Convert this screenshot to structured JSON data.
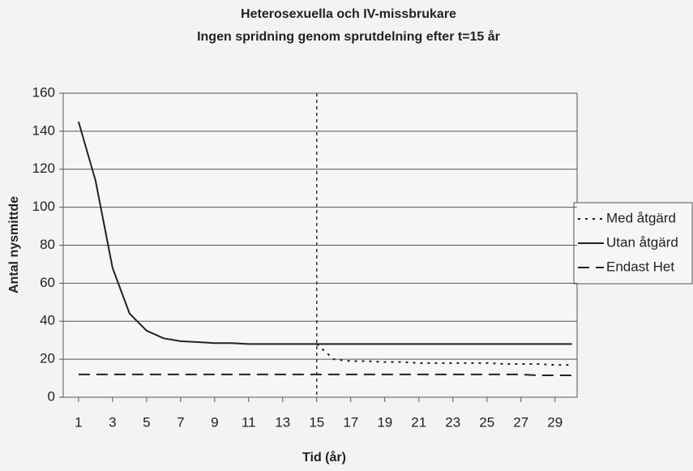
{
  "chart_data": {
    "type": "line",
    "title": "Heterosexuella och IV-missbrukare",
    "subtitle": "Ingen spridning genom sprutdelning efter t=15 år",
    "xlabel": "Tid (år)",
    "ylabel": "Antal nysmittde",
    "x": [
      1,
      2,
      3,
      4,
      5,
      6,
      7,
      8,
      9,
      10,
      11,
      12,
      13,
      14,
      15,
      16,
      17,
      18,
      19,
      20,
      21,
      22,
      23,
      24,
      25,
      26,
      27,
      28,
      29,
      30
    ],
    "series": [
      {
        "name": "Med åtgärd",
        "color": "#222222",
        "style": "dotted",
        "values": [
          null,
          null,
          null,
          null,
          null,
          null,
          null,
          null,
          null,
          null,
          null,
          null,
          null,
          null,
          28,
          20,
          19,
          19,
          18.5,
          18.5,
          18,
          18,
          18,
          18,
          18,
          17.5,
          17.5,
          17.5,
          17,
          17
        ]
      },
      {
        "name": "Utan åtgärd",
        "color": "#222222",
        "style": "solid",
        "values": [
          145,
          114,
          68,
          44,
          35,
          31,
          29.5,
          29,
          28.5,
          28.5,
          28,
          28,
          28,
          28,
          28,
          28,
          28,
          28,
          28,
          28,
          28,
          28,
          28,
          28,
          28,
          28,
          28,
          28,
          28,
          28
        ]
      },
      {
        "name": "Endast Het",
        "color": "#222222",
        "style": "dashed",
        "values": [
          12,
          12,
          12,
          12,
          12,
          12,
          12,
          12,
          12,
          12,
          12,
          12,
          12,
          12,
          12,
          12,
          12,
          12,
          12,
          12,
          12,
          12,
          12,
          12,
          12,
          12,
          12,
          11.5,
          11.5,
          11.5
        ]
      }
    ],
    "vline": 15,
    "xlim": [
      0.1,
      30.3
    ],
    "xticks": [
      1,
      3,
      5,
      7,
      9,
      11,
      13,
      15,
      17,
      19,
      21,
      23,
      25,
      27,
      29
    ],
    "ylim": [
      0,
      160
    ],
    "yticks": [
      0,
      20,
      40,
      60,
      80,
      100,
      120,
      140,
      160
    ],
    "grid": true,
    "legend": "right"
  }
}
